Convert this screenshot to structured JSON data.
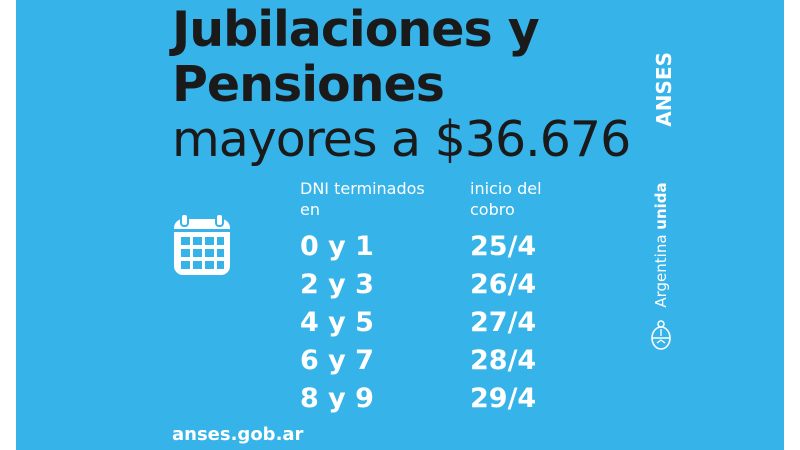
{
  "title": {
    "line1": "Jubilaciones y",
    "line2": "Pensiones",
    "line3": "mayores a $36.676"
  },
  "table": {
    "header_dni": "DNI terminados en",
    "header_cobro": "inicio del cobro",
    "rows": [
      {
        "dni": "0 y 1",
        "fecha": "25/4"
      },
      {
        "dni": "2 y 3",
        "fecha": "26/4"
      },
      {
        "dni": "4 y 5",
        "fecha": "27/4"
      },
      {
        "dni": "6 y 7",
        "fecha": "28/4"
      },
      {
        "dni": "8 y 9",
        "fecha": "29/4"
      }
    ]
  },
  "footer": {
    "url": "anses.gob.ar"
  },
  "branding": {
    "anses_logo_text": "ANSES",
    "slogan_light": "Argentina",
    "slogan_bold": "unida"
  },
  "icons": {
    "calendar": "calendar-icon",
    "seal": "argentina-seal-icon"
  },
  "colors": {
    "background": "#36b3e9",
    "title_text": "#1a1a1a",
    "body_text": "#ffffff"
  }
}
